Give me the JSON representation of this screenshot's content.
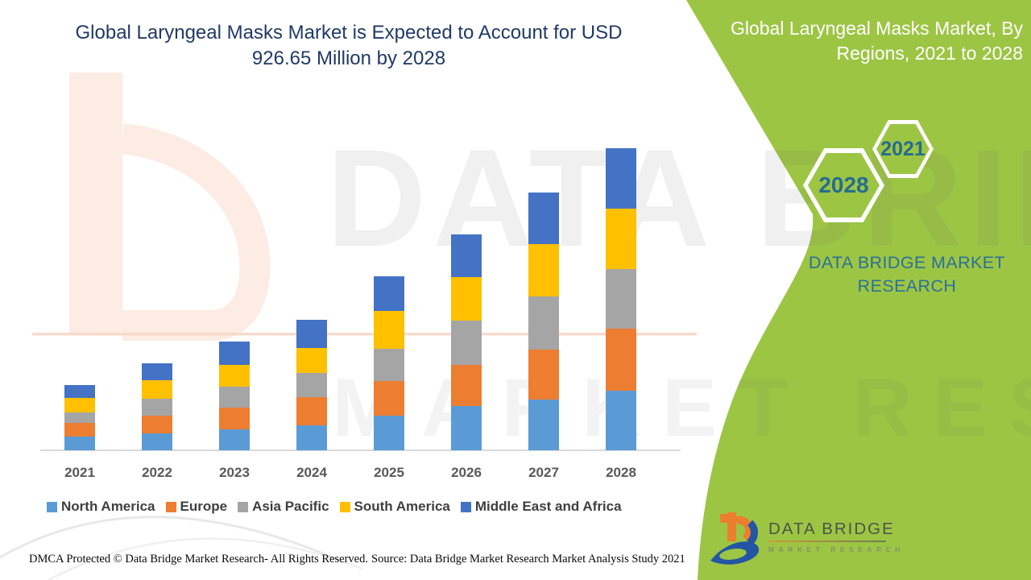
{
  "header": {
    "title": "Global Laryngeal Masks Market is Expected to Account for USD 926.65 Million by 2028"
  },
  "side_panel": {
    "title": "Global Laryngeal Masks Market, By Regions, 2021 to 2028",
    "hexagons": [
      "2021",
      "2028"
    ],
    "brand_text": "DATA BRIDGE MARKET RESEARCH",
    "green": "#9dc544",
    "teal": "#2b7197"
  },
  "watermarks": {
    "line1": "DATA BRIDGE",
    "line2": "MARKET RESEARCH"
  },
  "logo": {
    "name": "DATA BRIDGE",
    "tagline": "MARKET RESEARCH"
  },
  "footer": {
    "left": "DMCA Protected © Data Bridge Market Research- All Rights Reserved.",
    "source": "Source: Data Bridge Market Research Market Analysis Study 2021"
  },
  "chart_data": {
    "type": "bar",
    "stacked": true,
    "title": "Global Laryngeal Masks Market, By Regions, 2021 to 2028",
    "unit": "USD Million",
    "highlight_total_2028": 926.65,
    "categories": [
      "2021",
      "2022",
      "2023",
      "2024",
      "2025",
      "2026",
      "2027",
      "2028"
    ],
    "series": [
      {
        "name": "North America",
        "color": "#5B9BD5",
        "values": [
          42,
          52,
          65,
          77,
          106,
          136,
          155,
          184
        ]
      },
      {
        "name": "Europe",
        "color": "#ED7D31",
        "values": [
          42,
          55,
          66,
          86,
          107,
          125,
          153,
          188
        ]
      },
      {
        "name": "Asia Pacific",
        "color": "#A5A5A5",
        "values": [
          33,
          50,
          65,
          74,
          99,
          137,
          163,
          184
        ]
      },
      {
        "name": "South America",
        "color": "#FFC000",
        "values": [
          44,
          58,
          66,
          77,
          115,
          134,
          161,
          186
        ]
      },
      {
        "name": "Middle East and Africa",
        "color": "#4472C4",
        "values": [
          38,
          51,
          71,
          86,
          106,
          130,
          160,
          184.65
        ]
      }
    ],
    "totals_by_year": [
      199,
      266,
      333,
      400,
      533,
      662,
      792,
      926.65
    ],
    "x_axis": {
      "labels_visible": true
    },
    "y_axis": {
      "labels_visible": false,
      "gridlines": false
    },
    "legend_position": "bottom"
  }
}
